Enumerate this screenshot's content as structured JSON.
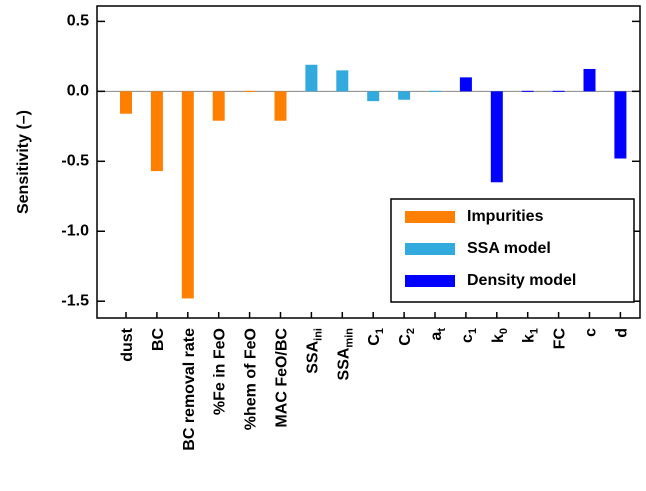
{
  "chart_data": {
    "type": "bar",
    "y_label": "Sensitivity (–)",
    "categories": [
      "dust",
      "BC",
      "BC removal rate",
      "%Fe in FeO",
      "%hem of FeO",
      "MAC FeO/BC",
      {
        "text": "SSA",
        "sub": "ini"
      },
      {
        "text": "SSA",
        "sub": "min"
      },
      {
        "text": "C",
        "sub": "1"
      },
      {
        "text": "C",
        "sub": "2"
      },
      {
        "text": "a",
        "sub": "t"
      },
      {
        "text": "c",
        "sub": "1"
      },
      {
        "text": "k",
        "sub": "0"
      },
      {
        "text": "k",
        "sub": "1"
      },
      "FC",
      "c",
      "d"
    ],
    "series": [
      {
        "name": "Impurities",
        "color": "#ff8000",
        "values": [
          -0.16,
          -0.57,
          -1.48,
          -0.21,
          0.0,
          -0.21,
          null,
          null,
          null,
          null,
          null,
          null,
          null,
          null,
          null,
          null,
          null
        ]
      },
      {
        "name": "SSA model",
        "color": "#33aadd",
        "values": [
          null,
          null,
          null,
          null,
          null,
          null,
          0.19,
          0.15,
          -0.07,
          -0.06,
          0.0,
          null,
          null,
          null,
          null,
          null,
          null
        ]
      },
      {
        "name": "Density model",
        "color": "#0000ff",
        "values": [
          null,
          null,
          null,
          null,
          null,
          null,
          null,
          null,
          null,
          null,
          null,
          0.1,
          -0.65,
          0.0,
          0.0,
          0.16,
          -0.48
        ]
      }
    ],
    "ylim": [
      -1.62,
      0.61
    ],
    "yticks": [
      {
        "value": -1.5,
        "label": "-1.5"
      },
      {
        "value": -1.0,
        "label": "-1.0"
      },
      -0.5,
      {
        "value": 0,
        "label": "0.0"
      },
      0.5
    ],
    "legend": "lower right"
  }
}
